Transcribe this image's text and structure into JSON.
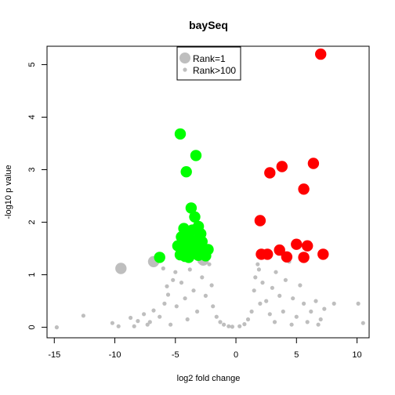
{
  "chart_data": {
    "type": "scatter",
    "title": "baySeq",
    "xlabel": "log2 fold change",
    "ylabel": "-log10 p value",
    "xlim": [
      -15.6,
      11.0
    ],
    "ylim": [
      -0.2,
      5.35
    ],
    "xticks": [
      -15,
      -10,
      -5,
      0,
      5,
      10
    ],
    "yticks": [
      0,
      1,
      2,
      3,
      4,
      5
    ],
    "tick_labels_x": [
      "-15",
      "-10",
      "-5",
      "0",
      "5",
      "10"
    ],
    "tick_labels_y": [
      "0",
      "1",
      "2",
      "3",
      "4",
      "5"
    ],
    "grid": false,
    "legend": {
      "position": "top-center",
      "entries": [
        {
          "label": "Rank=1",
          "color": "#bebebe",
          "size": "large"
        },
        {
          "label": "Rank>100",
          "color": "#bebebe",
          "size": "small"
        }
      ]
    },
    "colors": {
      "up": "#ff0000",
      "down": "#00ff00",
      "other": "#bebebe"
    },
    "series": [
      {
        "color": "#ff0000",
        "marker": "large",
        "points": [
          [
            7.0,
            5.2
          ],
          [
            6.4,
            3.12
          ],
          [
            3.8,
            3.06
          ],
          [
            2.8,
            2.94
          ],
          [
            5.6,
            2.63
          ],
          [
            2.0,
            2.03
          ],
          [
            5.0,
            1.58
          ],
          [
            5.9,
            1.55
          ],
          [
            3.6,
            1.47
          ],
          [
            7.2,
            1.39
          ],
          [
            2.1,
            1.39
          ],
          [
            2.6,
            1.39
          ],
          [
            4.2,
            1.34
          ],
          [
            5.6,
            1.33
          ]
        ]
      },
      {
        "color": "#00ff00",
        "marker": "large",
        "points": [
          [
            -4.6,
            3.68
          ],
          [
            -3.3,
            3.27
          ],
          [
            -4.1,
            2.96
          ],
          [
            -3.7,
            2.27
          ],
          [
            -3.4,
            2.1
          ],
          [
            -4.3,
            1.88
          ],
          [
            -3.1,
            1.92
          ],
          [
            -3.6,
            1.85
          ],
          [
            -2.9,
            1.78
          ],
          [
            -4.5,
            1.72
          ],
          [
            -3.9,
            1.7
          ],
          [
            -3.2,
            1.66
          ],
          [
            -2.8,
            1.63
          ],
          [
            -4.2,
            1.6
          ],
          [
            -3.5,
            1.58
          ],
          [
            -4.8,
            1.55
          ],
          [
            -3.8,
            1.52
          ],
          [
            -3.0,
            1.52
          ],
          [
            -2.3,
            1.48
          ],
          [
            -4.4,
            1.47
          ],
          [
            -3.3,
            1.45
          ],
          [
            -2.7,
            1.44
          ],
          [
            -4.0,
            1.42
          ],
          [
            -3.6,
            1.4
          ],
          [
            -4.6,
            1.38
          ],
          [
            -3.1,
            1.37
          ],
          [
            -4.2,
            1.35
          ],
          [
            -3.9,
            1.33
          ],
          [
            -2.5,
            1.36
          ],
          [
            -6.3,
            1.33
          ]
        ]
      },
      {
        "color": "#bebebe",
        "marker": "large",
        "points": [
          [
            -6.8,
            1.25
          ],
          [
            -9.5,
            1.12
          ],
          [
            -2.7,
            1.28
          ]
        ]
      },
      {
        "color": "#bebebe",
        "marker": "small",
        "points": [
          [
            -14.8,
            0.0
          ],
          [
            -12.6,
            0.22
          ],
          [
            -10.2,
            0.08
          ],
          [
            -9.7,
            0.02
          ],
          [
            -8.7,
            0.18
          ],
          [
            -8.1,
            0.12
          ],
          [
            -7.6,
            0.25
          ],
          [
            -7.1,
            0.1
          ],
          [
            -6.8,
            0.32
          ],
          [
            -6.3,
            0.2
          ],
          [
            -5.9,
            0.45
          ],
          [
            -5.6,
            0.62
          ],
          [
            -5.4,
            0.05
          ],
          [
            -5.2,
            0.9
          ],
          [
            -6.0,
            1.12
          ],
          [
            -5.7,
            0.78
          ],
          [
            -5.0,
            1.05
          ],
          [
            -4.9,
            0.4
          ],
          [
            -4.5,
            0.85
          ],
          [
            -4.2,
            0.55
          ],
          [
            -3.8,
            1.1
          ],
          [
            -3.5,
            0.7
          ],
          [
            -3.2,
            0.3
          ],
          [
            -2.8,
            0.95
          ],
          [
            -2.5,
            0.6
          ],
          [
            -2.2,
            1.2
          ],
          [
            -1.9,
            0.4
          ],
          [
            -1.6,
            0.2
          ],
          [
            -1.3,
            0.1
          ],
          [
            -1.0,
            0.05
          ],
          [
            -0.6,
            0.02
          ],
          [
            -0.3,
            0.01
          ],
          [
            0.3,
            0.02
          ],
          [
            0.7,
            0.06
          ],
          [
            1.0,
            0.15
          ],
          [
            1.3,
            0.3
          ],
          [
            1.5,
            0.7
          ],
          [
            1.6,
            0.95
          ],
          [
            1.8,
            1.2
          ],
          [
            2.2,
            0.85
          ],
          [
            2.5,
            0.5
          ],
          [
            2.8,
            0.25
          ],
          [
            3.0,
            0.75
          ],
          [
            3.3,
            1.05
          ],
          [
            3.6,
            0.6
          ],
          [
            3.9,
            0.3
          ],
          [
            4.1,
            0.9
          ],
          [
            4.4,
            1.25
          ],
          [
            4.7,
            0.55
          ],
          [
            5.0,
            0.2
          ],
          [
            5.3,
            0.8
          ],
          [
            5.6,
            0.45
          ],
          [
            5.9,
            0.1
          ],
          [
            6.2,
            0.3
          ],
          [
            6.6,
            0.5
          ],
          [
            7.0,
            0.15
          ],
          [
            7.3,
            0.35
          ],
          [
            8.1,
            0.45
          ],
          [
            10.1,
            0.45
          ],
          [
            10.5,
            0.08
          ],
          [
            -8.4,
            0.02
          ],
          [
            -7.3,
            0.05
          ],
          [
            -4.0,
            0.15
          ],
          [
            -2.0,
            0.8
          ],
          [
            2.0,
            0.45
          ],
          [
            3.2,
            0.1
          ],
          [
            4.6,
            0.05
          ],
          [
            6.8,
            0.05
          ],
          [
            -3.0,
            1.25
          ],
          [
            1.9,
            1.1
          ]
        ]
      }
    ]
  }
}
